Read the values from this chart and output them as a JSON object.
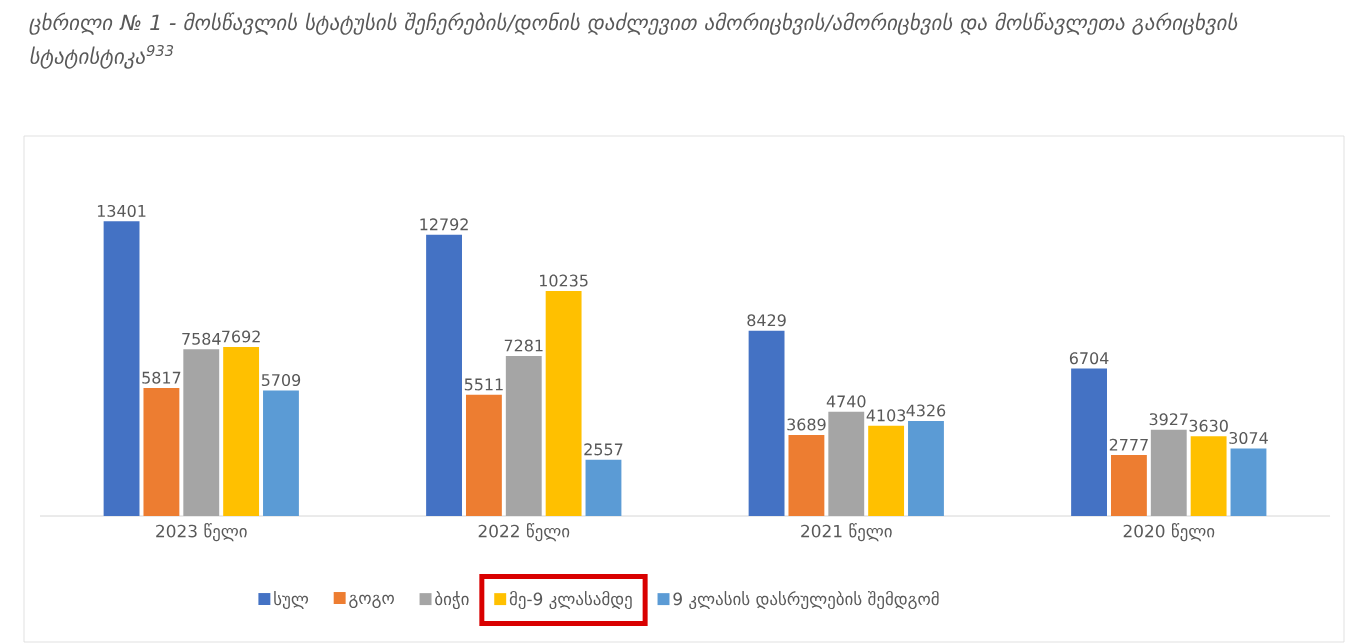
{
  "chart_data": {
    "type": "bar",
    "title": "ცხრილი № 1 - მოსწავლის სტატუსის შეჩერების/დონის დაძლევით ამორიცხვის/ამორიცხვის და მოსწავლეთა გარიცხვის  სტატისტიკა$^{933}$",
    "categories": [
      "2023 წელი",
      "2022 წელი",
      "2021 წელი",
      "2020 წელი"
    ],
    "series": [
      {
        "name": "სულ",
        "color": "#4472c4",
        "values": [
          13401,
          12792,
          8429,
          6704
        ]
      },
      {
        "name": "გოგო",
        "color": "#ed7d31",
        "values": [
          5817,
          5511,
          3689,
          2777
        ]
      },
      {
        "name": "ბიჭი",
        "color": "#a5a5a5",
        "values": [
          7584,
          7281,
          4740,
          3927
        ]
      },
      {
        "name": "მე-9 კლასამდე",
        "color": "#ffc000",
        "values": [
          7692,
          10235,
          4103,
          3630
        ]
      },
      {
        "name": "9 კლასის დასრულების შემდგომ",
        "color": "#5b9bd5",
        "values": [
          5709,
          2557,
          4326,
          3074
        ]
      }
    ],
    "data_labels": true,
    "legend": "bottom"
  }
}
